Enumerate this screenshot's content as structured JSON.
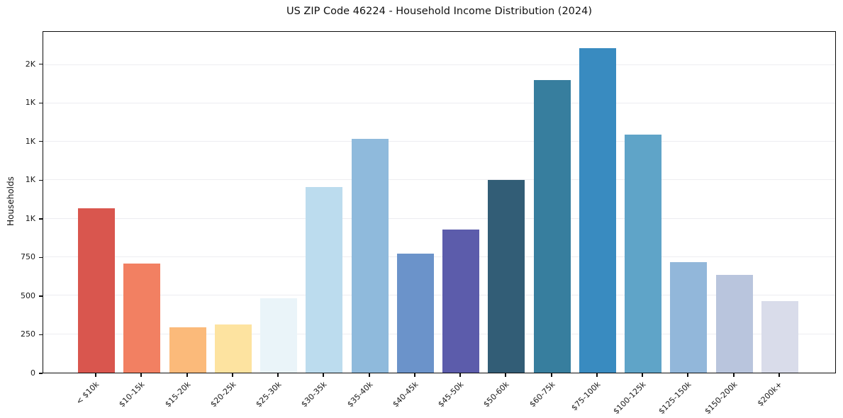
{
  "chart_data": {
    "type": "bar",
    "title": "US ZIP Code 46224 - Household Income Distribution (2024)",
    "xlabel": "",
    "ylabel": "Households",
    "categories": [
      "< $10k",
      "$10-15k",
      "$15-20k",
      "$20-25k",
      "$25-30k",
      "$30-35k",
      "$35-40k",
      "$40-45k",
      "$45-50k",
      "$50-60k",
      "$60-75k",
      "$75-100k",
      "$100-125k",
      "$125-150k",
      "$150-200k",
      "$200k+"
    ],
    "values": [
      1067,
      711,
      293,
      311,
      484,
      1204,
      1521,
      772,
      928,
      1254,
      1903,
      2109,
      1545,
      717,
      633,
      465
    ],
    "bar_colors": [
      "#d9564e",
      "#f28062",
      "#fbba7a",
      "#fde3a0",
      "#eaf4f9",
      "#bcdcee",
      "#8fbadc",
      "#6b93ca",
      "#5c5cab",
      "#325d76",
      "#377e9e",
      "#398bc0",
      "#5fa4c8",
      "#92b7da",
      "#b9c5dd",
      "#d9dcea"
    ],
    "ylim": [
      0,
      2214
    ],
    "yticks": [
      {
        "value": 0,
        "label": "0"
      },
      {
        "value": 250,
        "label": "250"
      },
      {
        "value": 500,
        "label": "500"
      },
      {
        "value": 750,
        "label": "750"
      },
      {
        "value": 1000,
        "label": "1K"
      },
      {
        "value": 1250,
        "label": "1K"
      },
      {
        "value": 1500,
        "label": "1K"
      },
      {
        "value": 1750,
        "label": "1K"
      },
      {
        "value": 2000,
        "label": "2K"
      }
    ],
    "grid": "horizontal",
    "legend": "none"
  },
  "colors": {
    "background": "#ffffff",
    "spine": "#0d0d0d",
    "gridline": "#ededf1",
    "text": "#1a1a1a"
  }
}
